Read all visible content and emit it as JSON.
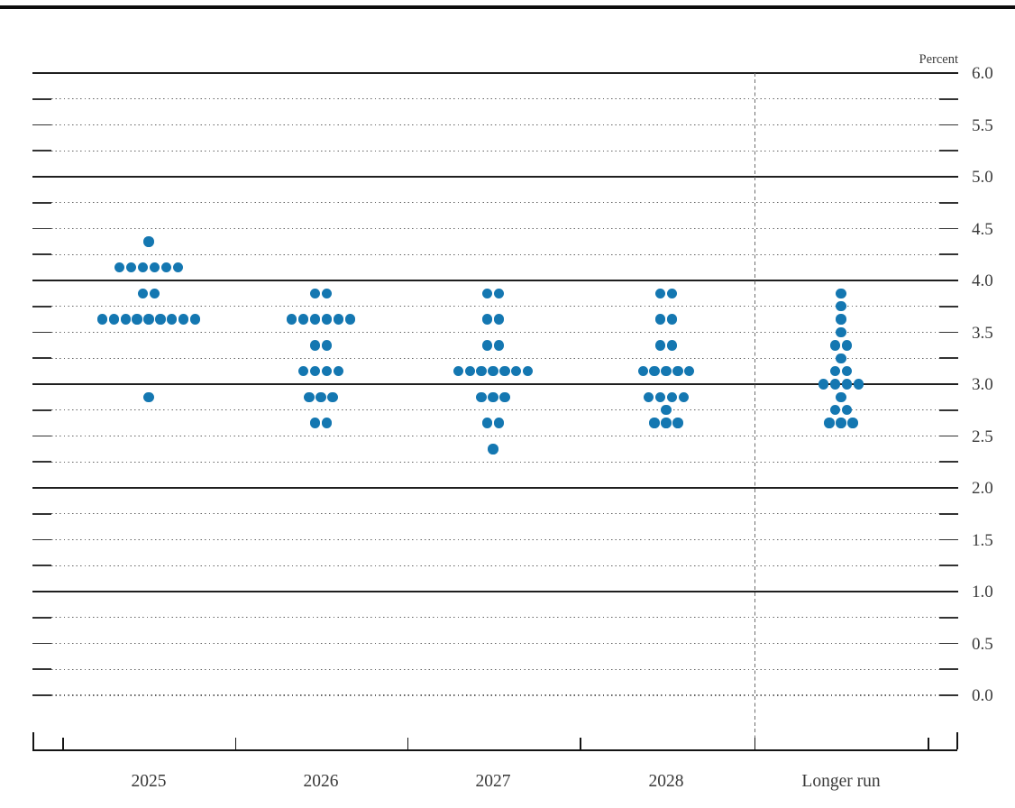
{
  "page": {
    "top_rule": "horizontal-divider",
    "unit_label": "Percent"
  },
  "chart_data": {
    "type": "scatter",
    "subtype": "dot-plot",
    "title": "",
    "unit_label": "Percent",
    "categories": [
      "2025",
      "2026",
      "2027",
      "2028",
      "Longer run"
    ],
    "y_axis": {
      "min": 0.0,
      "max": 6.0,
      "label_step": 0.5,
      "grid_step": 0.25,
      "tick_labels": [
        "6.0",
        "5.5",
        "5.0",
        "4.5",
        "4.0",
        "3.5",
        "3.0",
        "2.5",
        "2.0",
        "1.5",
        "1.0",
        "0.5",
        "0.0"
      ],
      "solid_gridlines_at": [
        6.0,
        5.0,
        4.0,
        3.0,
        2.0,
        1.0
      ],
      "dotted_gridlines_every": 0.25,
      "labels_side": "right"
    },
    "divider_before_category": "Longer run",
    "series": [
      {
        "name": "2025",
        "points": [
          {
            "value": 4.375,
            "count": 1
          },
          {
            "value": 4.125,
            "count": 6
          },
          {
            "value": 3.875,
            "count": 2
          },
          {
            "value": 3.625,
            "count": 9
          },
          {
            "value": 2.875,
            "count": 1
          }
        ]
      },
      {
        "name": "2026",
        "points": [
          {
            "value": 3.875,
            "count": 2
          },
          {
            "value": 3.625,
            "count": 6
          },
          {
            "value": 3.375,
            "count": 2
          },
          {
            "value": 3.125,
            "count": 4
          },
          {
            "value": 2.875,
            "count": 3
          },
          {
            "value": 2.625,
            "count": 2
          }
        ]
      },
      {
        "name": "2027",
        "points": [
          {
            "value": 3.875,
            "count": 2
          },
          {
            "value": 3.625,
            "count": 2
          },
          {
            "value": 3.375,
            "count": 2
          },
          {
            "value": 3.125,
            "count": 7
          },
          {
            "value": 2.875,
            "count": 3
          },
          {
            "value": 2.625,
            "count": 2
          },
          {
            "value": 2.375,
            "count": 1
          }
        ]
      },
      {
        "name": "2028",
        "points": [
          {
            "value": 3.875,
            "count": 2
          },
          {
            "value": 3.625,
            "count": 2
          },
          {
            "value": 3.375,
            "count": 2
          },
          {
            "value": 3.125,
            "count": 5
          },
          {
            "value": 2.875,
            "count": 4
          },
          {
            "value": 2.75,
            "count": 1
          },
          {
            "value": 2.625,
            "count": 3
          }
        ]
      },
      {
        "name": "Longer run",
        "points": [
          {
            "value": 3.875,
            "count": 1
          },
          {
            "value": 3.75,
            "count": 1
          },
          {
            "value": 3.625,
            "count": 1
          },
          {
            "value": 3.5,
            "count": 1
          },
          {
            "value": 3.375,
            "count": 2
          },
          {
            "value": 3.25,
            "count": 1
          },
          {
            "value": 3.125,
            "count": 2
          },
          {
            "value": 3.0,
            "count": 4
          },
          {
            "value": 2.875,
            "count": 1
          },
          {
            "value": 2.75,
            "count": 2
          },
          {
            "value": 2.625,
            "count": 3
          }
        ]
      }
    ],
    "colors": {
      "dot": "#1477b1",
      "solid_grid": "#1f1f1f",
      "dotted_grid": "#636363",
      "dashed_divider": "#6e6e6e",
      "axis": "#141414",
      "text": "#3a3a3a"
    },
    "legend": null,
    "grid": true
  }
}
